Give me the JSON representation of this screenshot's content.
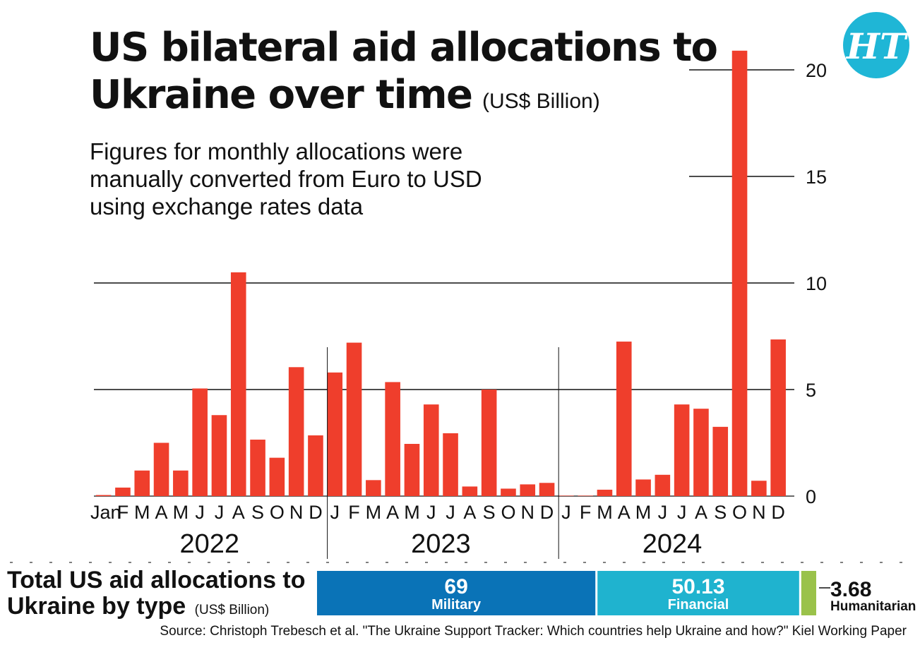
{
  "header": {
    "title_line1": "US bilateral aid allocations to",
    "title_line2": "Ukraine over time",
    "title_unit": "(US$ Billion)",
    "subtitle_lines": [
      "Figures for monthly allocations were",
      "manually converted from Euro to USD",
      "using exchange rates data"
    ],
    "logo_text": "HT"
  },
  "chart_data": {
    "type": "bar",
    "ylim": [
      0,
      20
    ],
    "yticks": [
      0,
      5,
      10,
      15,
      20
    ],
    "grid": true,
    "bar_color": "#ef3e2c",
    "years": [
      "2022",
      "2023",
      "2024"
    ],
    "month_labels": [
      "Jan",
      "F",
      "M",
      "A",
      "M",
      "J",
      "J",
      "A",
      "S",
      "O",
      "N",
      "D",
      "J",
      "F",
      "M",
      "A",
      "M",
      "J",
      "J",
      "A",
      "S",
      "O",
      "N",
      "D",
      "J",
      "F",
      "M",
      "A",
      "M",
      "J",
      "J",
      "A",
      "S",
      "O",
      "N",
      "D"
    ],
    "values": [
      0.05,
      0.4,
      1.2,
      2.5,
      1.2,
      5.05,
      3.8,
      10.5,
      2.65,
      1.8,
      6.05,
      2.85,
      5.8,
      7.2,
      0.75,
      5.35,
      2.45,
      4.3,
      2.95,
      0.45,
      5.0,
      0.35,
      0.55,
      0.62,
      0.02,
      0.0,
      0.3,
      7.25,
      0.78,
      1.0,
      4.3,
      4.1,
      3.25,
      20.9,
      0.72,
      7.35
    ]
  },
  "totals": {
    "title_line1": "Total US aid allocations to",
    "title_line2": "Ukraine by type",
    "unit": "(US$ Billion)",
    "segments": [
      {
        "value": 69,
        "value_label": "69",
        "label": "Military",
        "color": "#0a73b7"
      },
      {
        "value": 50.13,
        "value_label": "50.13",
        "label": "Financial",
        "color": "#1fb3cf"
      },
      {
        "value": 3.68,
        "value_label": "3.68",
        "label": "Humanitarian",
        "color": "#9ac24a"
      }
    ]
  },
  "source": "Source: Christoph Trebesch et al. \"The Ukraine Support Tracker: Which countries help Ukraine and how?\" Kiel Working Paper"
}
